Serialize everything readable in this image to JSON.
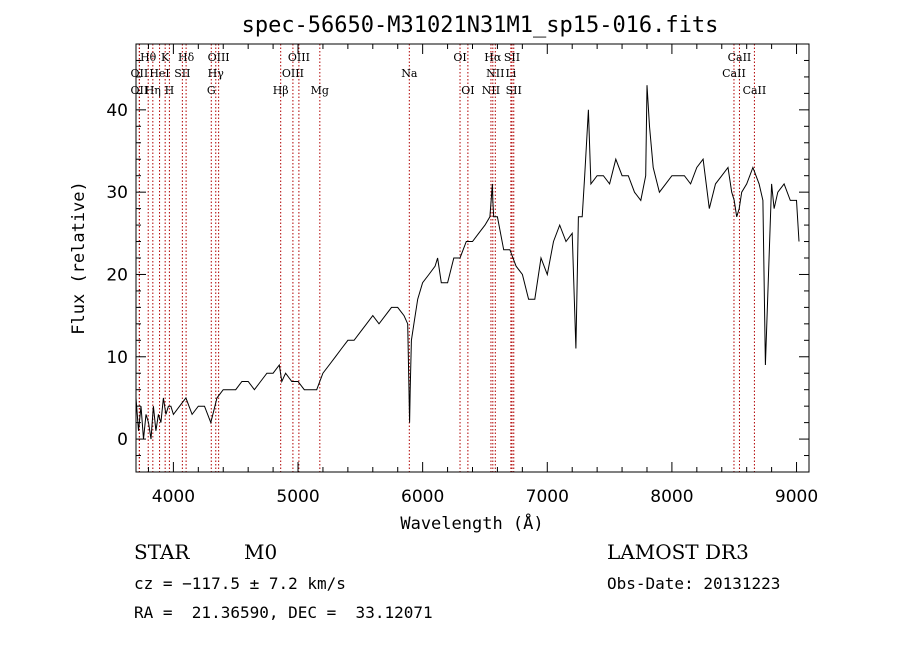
{
  "chart_data": {
    "type": "line",
    "title": "spec-56650-M31021N31M1_sp15-016.fits",
    "xlabel": "Wavelength (Å)",
    "ylabel": "Flux (relative)",
    "xlim": [
      3700,
      9100
    ],
    "ylim": [
      -4,
      48
    ],
    "x_ticks": [
      4000,
      5000,
      6000,
      7000,
      8000,
      9000
    ],
    "y_ticks": [
      0,
      10,
      20,
      30,
      40
    ],
    "grid": false,
    "series": [
      {
        "color": "#000000",
        "x": [
          3700,
          3720,
          3740,
          3760,
          3780,
          3800,
          3820,
          3840,
          3860,
          3880,
          3900,
          3920,
          3940,
          3960,
          3980,
          4000,
          4050,
          4100,
          4150,
          4200,
          4250,
          4300,
          4350,
          4400,
          4450,
          4500,
          4550,
          4600,
          4650,
          4700,
          4750,
          4800,
          4850,
          4870,
          4900,
          4950,
          5000,
          5050,
          5100,
          5150,
          5200,
          5250,
          5300,
          5350,
          5400,
          5450,
          5500,
          5550,
          5600,
          5650,
          5700,
          5750,
          5800,
          5850,
          5880,
          5895,
          5900,
          5910,
          5930,
          5960,
          6000,
          6050,
          6100,
          6120,
          6150,
          6200,
          6250,
          6300,
          6350,
          6400,
          6450,
          6500,
          6540,
          6560,
          6563,
          6570,
          6600,
          6650,
          6700,
          6750,
          6800,
          6850,
          6900,
          6950,
          7000,
          7050,
          7100,
          7150,
          7200,
          7230,
          7250,
          7280,
          7300,
          7330,
          7350,
          7400,
          7450,
          7500,
          7550,
          7600,
          7650,
          7700,
          7750,
          7790,
          7800,
          7820,
          7850,
          7900,
          7950,
          8000,
          8050,
          8100,
          8150,
          8200,
          8250,
          8300,
          8350,
          8400,
          8450,
          8480,
          8500,
          8520,
          8540,
          8560,
          8600,
          8650,
          8700,
          8730,
          8750,
          8800,
          8820,
          8850,
          8900,
          8950,
          9000,
          9020
        ],
        "y": [
          5,
          1,
          4,
          0,
          3,
          2,
          0,
          4,
          1,
          3,
          2,
          5,
          3,
          4,
          4,
          3,
          4,
          5,
          3,
          4,
          4,
          2,
          5,
          6,
          6,
          6,
          7,
          7,
          6,
          7,
          8,
          8,
          9,
          7,
          8,
          7,
          7,
          6,
          6,
          6,
          8,
          9,
          10,
          11,
          12,
          12,
          13,
          14,
          15,
          14,
          15,
          16,
          16,
          15,
          14,
          2,
          6,
          12,
          14,
          17,
          19,
          20,
          21,
          22,
          19,
          19,
          22,
          22,
          24,
          24,
          25,
          26,
          27,
          31,
          29,
          27,
          27,
          23,
          23,
          21,
          20,
          17,
          17,
          22,
          20,
          24,
          26,
          24,
          25,
          11,
          27,
          27,
          32,
          40,
          31,
          32,
          32,
          31,
          34,
          32,
          32,
          30,
          29,
          32,
          43,
          38,
          33,
          30,
          31,
          32,
          32,
          32,
          31,
          33,
          34,
          28,
          31,
          32,
          33,
          30,
          29,
          27,
          28,
          30,
          31,
          33,
          31,
          29,
          9,
          31,
          28,
          30,
          31,
          29,
          29,
          24
        ]
      }
    ],
    "spectral_lines": [
      {
        "label": "Hθ",
        "x": 3798,
        "row": 1
      },
      {
        "label": "OII",
        "x": 3727,
        "row": 2
      },
      {
        "label": "OII",
        "x": 3727,
        "row": 3
      },
      {
        "label": "Hη",
        "x": 3835,
        "row": 3
      },
      {
        "label": "HeI",
        "x": 3889,
        "row": 2
      },
      {
        "label": "K",
        "x": 3934,
        "row": 1
      },
      {
        "label": "SII",
        "x": 4072,
        "row": 2
      },
      {
        "label": "H",
        "x": 3968,
        "row": 3
      },
      {
        "label": "Hδ",
        "x": 4102,
        "row": 1
      },
      {
        "label": "OIII",
        "x": 4363,
        "row": 1
      },
      {
        "label": "Hγ",
        "x": 4340,
        "row": 2
      },
      {
        "label": "G",
        "x": 4304,
        "row": 3
      },
      {
        "label": "OIII",
        "x": 5007,
        "row": 1
      },
      {
        "label": "OIII",
        "x": 4959,
        "row": 2
      },
      {
        "label": "Hβ",
        "x": 4861,
        "row": 3
      },
      {
        "label": "Mg",
        "x": 5175,
        "row": 3
      },
      {
        "label": "Na",
        "x": 5893,
        "row": 2
      },
      {
        "label": "OI",
        "x": 6300,
        "row": 1
      },
      {
        "label": "OI",
        "x": 6363,
        "row": 3
      },
      {
        "label": "Hα",
        "x": 6563,
        "row": 1
      },
      {
        "label": "SII",
        "x": 6717,
        "row": 1
      },
      {
        "label": "NII",
        "x": 6583,
        "row": 2
      },
      {
        "label": "Li",
        "x": 6708,
        "row": 2
      },
      {
        "label": "NII",
        "x": 6548,
        "row": 3
      },
      {
        "label": "SII",
        "x": 6731,
        "row": 3
      },
      {
        "label": "CaII",
        "x": 8542,
        "row": 1
      },
      {
        "label": "CaII",
        "x": 8498,
        "row": 2
      },
      {
        "label": "CaII",
        "x": 8662,
        "row": 3
      }
    ],
    "line_color": "#b00000"
  },
  "info": {
    "object_class": "STAR",
    "subclass": "M0",
    "survey": "LAMOST DR3",
    "cz": "cz = −117.5 ± 7.2 km/s",
    "obs_date": "Obs-Date: 20131223",
    "coords": "RA =  21.36590, DEC =  33.12071"
  }
}
